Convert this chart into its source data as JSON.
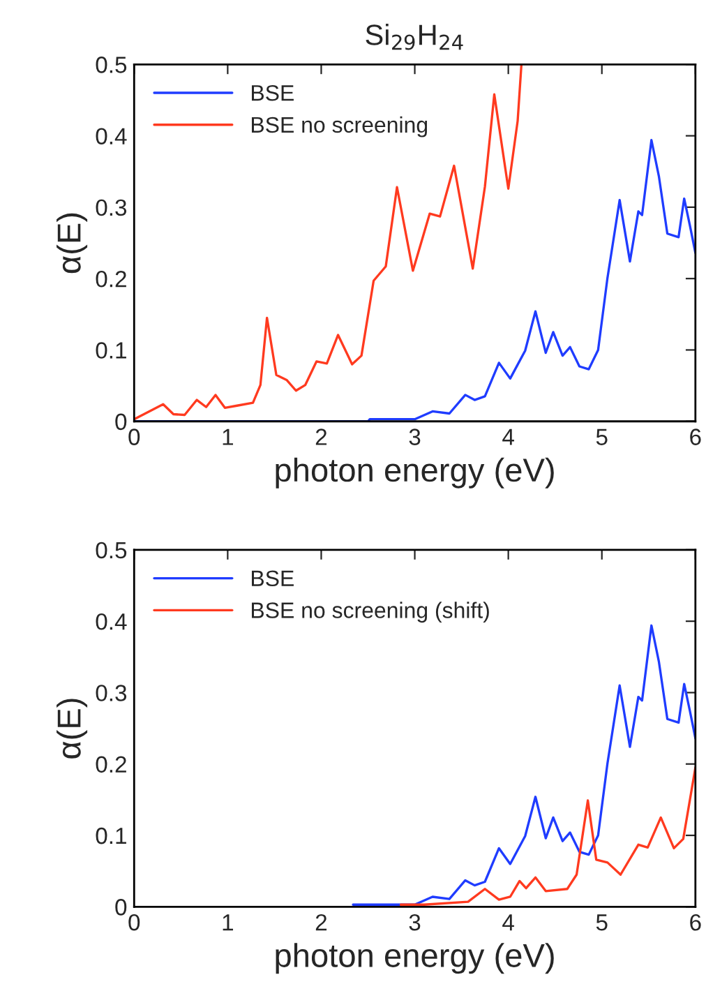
{
  "chart_data": [
    {
      "type": "line",
      "title": "Si$_{29}$H$_{24}$",
      "xlabel": "photon energy (eV)",
      "ylabel": "α(E)",
      "xlim": [
        0,
        6
      ],
      "ylim": [
        0,
        0.5
      ],
      "xticks": [
        0,
        1,
        2,
        3,
        4,
        5,
        6
      ],
      "yticks": [
        0,
        0.1,
        0.2,
        0.3,
        0.4,
        0.5
      ],
      "legend": "top left",
      "grid": false,
      "series": [
        {
          "name": "BSE",
          "color": "#1f3cff",
          "x": [
            0,
            2.5,
            2.52,
            3.0,
            3.19,
            3.37,
            3.54,
            3.64,
            3.75,
            3.9,
            4.02,
            4.18,
            4.29,
            4.4,
            4.48,
            4.58,
            4.66,
            4.76,
            4.86,
            4.96,
            5.06,
            5.19,
            5.3,
            5.39,
            5.43,
            5.53,
            5.61,
            5.7,
            5.82,
            5.88,
            5.94,
            6.0
          ],
          "values": [
            0,
            0,
            0.003,
            0.003,
            0.014,
            0.011,
            0.037,
            0.03,
            0.035,
            0.082,
            0.06,
            0.099,
            0.154,
            0.096,
            0.125,
            0.092,
            0.104,
            0.077,
            0.073,
            0.1,
            0.201,
            0.31,
            0.224,
            0.294,
            0.289,
            0.394,
            0.343,
            0.263,
            0.258,
            0.312,
            0.275,
            0.236
          ]
        },
        {
          "name": "BSE no screening",
          "color": "#ff3a1f",
          "x": [
            0,
            0.31,
            0.42,
            0.54,
            0.67,
            0.77,
            0.87,
            0.97,
            1.1,
            1.27,
            1.35,
            1.42,
            1.52,
            1.63,
            1.73,
            1.83,
            1.95,
            2.06,
            2.18,
            2.33,
            2.43,
            2.56,
            2.69,
            2.81,
            2.98,
            3.16,
            3.27,
            3.42,
            3.62,
            3.75,
            3.85,
            4.0,
            4.1,
            4.14
          ],
          "values": [
            0.003,
            0.024,
            0.01,
            0.009,
            0.03,
            0.02,
            0.037,
            0.019,
            0.022,
            0.026,
            0.051,
            0.145,
            0.065,
            0.058,
            0.043,
            0.051,
            0.084,
            0.081,
            0.121,
            0.08,
            0.092,
            0.197,
            0.217,
            0.328,
            0.211,
            0.291,
            0.287,
            0.358,
            0.214,
            0.329,
            0.458,
            0.326,
            0.421,
            0.5
          ]
        }
      ]
    },
    {
      "type": "line",
      "xlabel": "photon energy (eV)",
      "ylabel": "α(E)",
      "xlim": [
        0,
        6
      ],
      "ylim": [
        0,
        0.5
      ],
      "xticks": [
        0,
        1,
        2,
        3,
        4,
        5,
        6
      ],
      "yticks": [
        0,
        0.1,
        0.2,
        0.3,
        0.4,
        0.5
      ],
      "legend": "top left",
      "grid": false,
      "series": [
        {
          "name": "BSE",
          "color": "#1f3cff",
          "x": [
            2.34,
            3.0,
            3.19,
            3.37,
            3.54,
            3.64,
            3.75,
            3.9,
            4.02,
            4.18,
            4.29,
            4.4,
            4.48,
            4.58,
            4.66,
            4.76,
            4.86,
            4.96,
            5.06,
            5.19,
            5.3,
            5.39,
            5.43,
            5.53,
            5.61,
            5.7,
            5.82,
            5.88,
            5.94,
            6.0
          ],
          "values": [
            0.003,
            0.003,
            0.014,
            0.011,
            0.037,
            0.03,
            0.035,
            0.082,
            0.06,
            0.099,
            0.154,
            0.096,
            0.125,
            0.092,
            0.104,
            0.077,
            0.073,
            0.1,
            0.201,
            0.31,
            0.224,
            0.294,
            0.289,
            0.394,
            0.343,
            0.263,
            0.258,
            0.312,
            0.275,
            0.236
          ]
        },
        {
          "name": "BSE no screening (shift)",
          "color": "#ff3a1f",
          "x": [
            2.85,
            3.1,
            3.57,
            3.75,
            3.9,
            4.02,
            4.12,
            4.19,
            4.29,
            4.4,
            4.63,
            4.73,
            4.85,
            4.94,
            5.06,
            5.2,
            5.39,
            5.49,
            5.63,
            5.77,
            5.87,
            6.0
          ],
          "values": [
            0.003,
            0.003,
            0.007,
            0.025,
            0.01,
            0.014,
            0.036,
            0.026,
            0.041,
            0.022,
            0.025,
            0.045,
            0.149,
            0.066,
            0.062,
            0.045,
            0.087,
            0.083,
            0.125,
            0.082,
            0.095,
            0.195
          ]
        }
      ]
    }
  ]
}
